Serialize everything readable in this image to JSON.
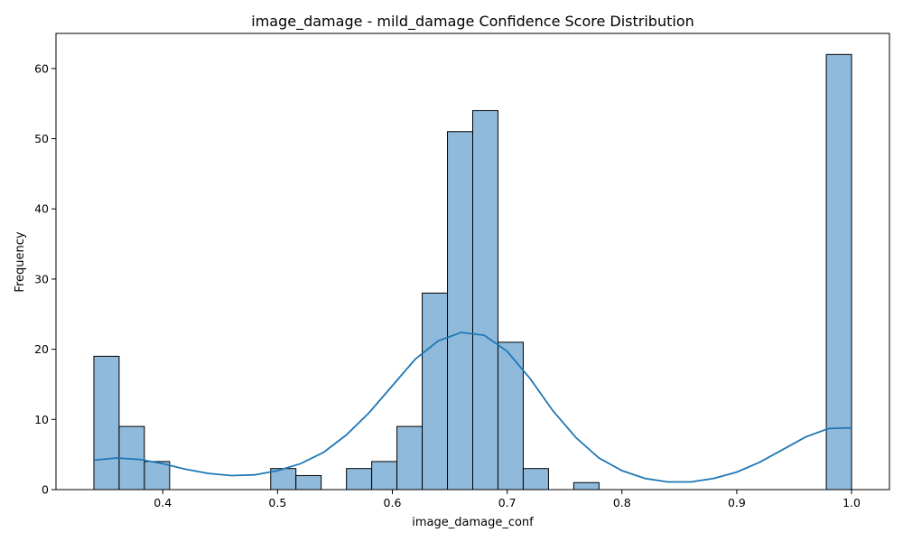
{
  "chart_data": {
    "type": "bar",
    "title": "image_damage - mild_damage Confidence Score Distribution",
    "xlabel": "image_damage_conf",
    "ylabel": "Frequency",
    "xlim": [
      0.307,
      1.033
    ],
    "ylim": [
      0,
      65
    ],
    "xticks": [
      0.4,
      0.5,
      0.6,
      0.7,
      0.8,
      0.9,
      1.0
    ],
    "xtick_labels": [
      "0.4",
      "0.5",
      "0.6",
      "0.7",
      "0.8",
      "0.9",
      "1.0"
    ],
    "yticks": [
      0,
      10,
      20,
      30,
      40,
      50,
      60
    ],
    "ytick_labels": [
      "0",
      "10",
      "20",
      "30",
      "40",
      "50",
      "60"
    ],
    "grid": false,
    "bins": {
      "start": 0.34,
      "width": 0.022,
      "counts": [
        19,
        9,
        4,
        0,
        0,
        0,
        0,
        3,
        2,
        0,
        3,
        4,
        9,
        28,
        51,
        54,
        21,
        3,
        0,
        1,
        0,
        0,
        0,
        0,
        0,
        0,
        0,
        0,
        0,
        62
      ]
    },
    "kde": {
      "x": [
        0.34,
        0.36,
        0.38,
        0.4,
        0.42,
        0.44,
        0.46,
        0.48,
        0.5,
        0.52,
        0.54,
        0.56,
        0.58,
        0.6,
        0.62,
        0.64,
        0.66,
        0.68,
        0.7,
        0.72,
        0.74,
        0.76,
        0.78,
        0.8,
        0.82,
        0.84,
        0.86,
        0.88,
        0.9,
        0.92,
        0.94,
        0.96,
        0.98,
        1.0
      ],
      "y": [
        4.2,
        4.5,
        4.3,
        3.7,
        2.9,
        2.3,
        2.0,
        2.1,
        2.7,
        3.7,
        5.3,
        7.8,
        11.0,
        14.8,
        18.6,
        21.2,
        22.4,
        22.0,
        19.7,
        15.8,
        11.2,
        7.4,
        4.5,
        2.7,
        1.6,
        1.1,
        1.1,
        1.6,
        2.5,
        3.9,
        5.7,
        7.5,
        8.7,
        8.8
      ]
    },
    "colors": {
      "bar_fill": "#8fbadb",
      "bar_edge": "#000000",
      "kde_line": "#1f77b4"
    }
  }
}
